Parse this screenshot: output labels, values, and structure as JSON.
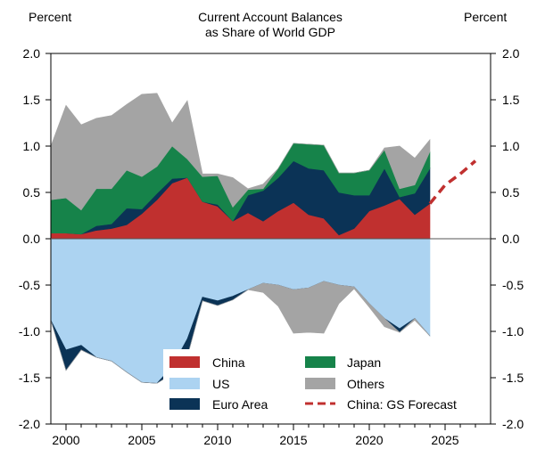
{
  "chart_data": {
    "type": "area",
    "title": [
      "Current Account Balances",
      "as Share of World GDP"
    ],
    "ylabel_left": "Percent",
    "ylabel_right": "Percent",
    "ylim": [
      -2.0,
      2.0
    ],
    "xlim": [
      1999,
      2028
    ],
    "yticks": [
      2.0,
      1.5,
      1.0,
      0.5,
      0.0,
      -0.5,
      -1.0,
      -1.5,
      -2.0
    ],
    "yticklabels": [
      "2.0",
      "1.5",
      "1.0",
      "0.5",
      "0.0",
      "-0.5",
      "-1.0",
      "-1.5",
      "-2.0"
    ],
    "xticks": [
      2000,
      2005,
      2010,
      2015,
      2020,
      2025
    ],
    "xticklabels": [
      "2000",
      "2005",
      "2010",
      "2015",
      "2020",
      "2025"
    ],
    "x": [
      1999,
      2000,
      2001,
      2002,
      2003,
      2004,
      2005,
      2006,
      2007,
      2008,
      2009,
      2010,
      2011,
      2012,
      2013,
      2014,
      2015,
      2016,
      2017,
      2018,
      2019,
      2020,
      2021,
      2022,
      2023,
      2024
    ],
    "series": [
      {
        "name": "China",
        "group": "surplus",
        "color": "#c0302f",
        "values": [
          0.06,
          0.06,
          0.05,
          0.09,
          0.11,
          0.15,
          0.27,
          0.42,
          0.6,
          0.66,
          0.4,
          0.35,
          0.19,
          0.28,
          0.19,
          0.3,
          0.39,
          0.26,
          0.22,
          0.04,
          0.11,
          0.3,
          0.36,
          0.43,
          0.26,
          0.38
        ]
      },
      {
        "name": "Euro Area",
        "group": "surplus",
        "color": "#0b3356",
        "values": [
          0.0,
          0.0,
          0.0,
          0.05,
          0.05,
          0.18,
          0.05,
          0.07,
          0.05,
          0.0,
          0.0,
          0.02,
          0.0,
          0.19,
          0.33,
          0.36,
          0.45,
          0.5,
          0.52,
          0.46,
          0.36,
          0.17,
          0.4,
          0.02,
          0.23,
          0.38
        ]
      },
      {
        "name": "Japan",
        "group": "surplus",
        "color": "#16834a",
        "values": [
          0.36,
          0.38,
          0.26,
          0.4,
          0.38,
          0.41,
          0.35,
          0.29,
          0.35,
          0.2,
          0.27,
          0.31,
          0.15,
          0.06,
          0.02,
          0.1,
          0.19,
          0.26,
          0.27,
          0.21,
          0.24,
          0.27,
          0.2,
          0.09,
          0.09,
          0.18
        ]
      },
      {
        "name": "Others",
        "group": "surplus",
        "color": "#a4a4a4",
        "values": [
          0.58,
          1.0,
          0.92,
          0.76,
          0.79,
          0.71,
          0.89,
          0.79,
          0.25,
          0.63,
          0.03,
          0.02,
          0.32,
          0.01,
          0.05,
          0.0,
          0.0,
          0.0,
          0.0,
          0.0,
          0.0,
          0.0,
          0.02,
          0.46,
          0.29,
          0.13
        ]
      },
      {
        "name": "US",
        "group": "deficit",
        "color": "#acd3f1",
        "values": [
          -0.88,
          -1.2,
          -1.15,
          -1.28,
          -1.32,
          -1.44,
          -1.55,
          -1.56,
          -1.38,
          -1.08,
          -0.63,
          -0.67,
          -0.62,
          -0.55,
          -0.48,
          -0.5,
          -0.55,
          -0.53,
          -0.46,
          -0.5,
          -0.52,
          -0.7,
          -0.86,
          -0.97,
          -0.86,
          -1.05
        ]
      },
      {
        "name": "Euro Area",
        "group": "deficit",
        "color": "#0b3356",
        "values": [
          0.0,
          -0.22,
          -0.05,
          0.0,
          0.0,
          0.0,
          0.0,
          0.0,
          -0.08,
          -0.19,
          -0.04,
          -0.05,
          -0.04,
          0.0,
          0.0,
          0.0,
          0.0,
          0.0,
          0.0,
          0.0,
          0.0,
          0.0,
          0.0,
          -0.04,
          0.0,
          0.0
        ]
      },
      {
        "name": "Others",
        "group": "deficit",
        "color": "#a4a4a4",
        "values": [
          0.0,
          0.0,
          0.0,
          0.0,
          0.0,
          0.0,
          0.0,
          0.0,
          0.0,
          0.0,
          0.0,
          0.0,
          0.0,
          0.0,
          -0.1,
          -0.23,
          -0.47,
          -0.48,
          -0.56,
          -0.2,
          -0.02,
          -0.04,
          -0.09,
          0.0,
          -0.02,
          0.0
        ]
      }
    ],
    "forecast": {
      "name": "China: GS Forecast",
      "color": "#c0302f",
      "style": "dashed",
      "x": [
        2024,
        2025,
        2026,
        2027
      ],
      "values": [
        0.38,
        0.58,
        0.7,
        0.84
      ]
    },
    "legend": {
      "placement": "bottom-center",
      "entries": [
        {
          "label": "China",
          "color": "#c0302f",
          "kind": "box"
        },
        {
          "label": "Japan",
          "color": "#16834a",
          "kind": "box"
        },
        {
          "label": "US",
          "color": "#acd3f1",
          "kind": "box"
        },
        {
          "label": "Others",
          "color": "#a4a4a4",
          "kind": "box"
        },
        {
          "label": "Euro Area",
          "color": "#0b3356",
          "kind": "box"
        },
        {
          "label": "China: GS Forecast",
          "color": "#c0302f",
          "kind": "dashed-line"
        }
      ]
    }
  }
}
